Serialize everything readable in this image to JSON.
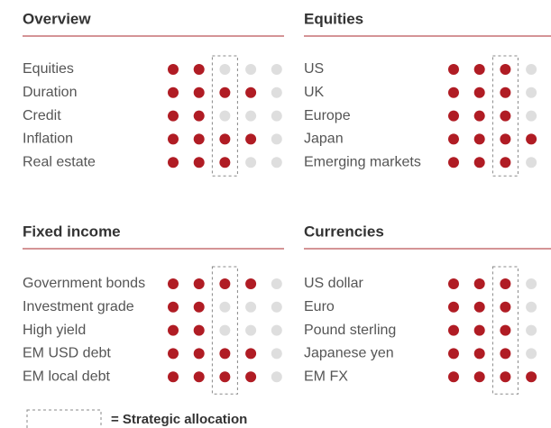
{
  "dots": 5,
  "strategic": 3,
  "legend": "= Strategic allocation",
  "sections": [
    {
      "title": "Overview",
      "rows": [
        {
          "label": "Equities",
          "rating": 2
        },
        {
          "label": "Duration",
          "rating": 4
        },
        {
          "label": "Credit",
          "rating": 2
        },
        {
          "label": "Inflation",
          "rating": 4
        },
        {
          "label": "Real estate",
          "rating": 3
        }
      ]
    },
    {
      "title": "Equities",
      "rows": [
        {
          "label": "US",
          "rating": 3
        },
        {
          "label": "UK",
          "rating": 3
        },
        {
          "label": "Europe",
          "rating": 3
        },
        {
          "label": "Japan",
          "rating": 4
        },
        {
          "label": "Emerging markets",
          "rating": 3
        }
      ]
    },
    {
      "title": "Fixed income",
      "rows": [
        {
          "label": "Government bonds",
          "rating": 4
        },
        {
          "label": "Investment grade",
          "rating": 2
        },
        {
          "label": "High yield",
          "rating": 2
        },
        {
          "label": "EM USD debt",
          "rating": 4
        },
        {
          "label": "EM local debt",
          "rating": 4
        }
      ]
    },
    {
      "title": "Currencies",
      "rows": [
        {
          "label": "US dollar",
          "rating": 3
        },
        {
          "label": "Euro",
          "rating": 3
        },
        {
          "label": "Pound sterling",
          "rating": 3
        },
        {
          "label": "Japanese yen",
          "rating": 3
        },
        {
          "label": "EM FX",
          "rating": 4
        }
      ]
    }
  ]
}
